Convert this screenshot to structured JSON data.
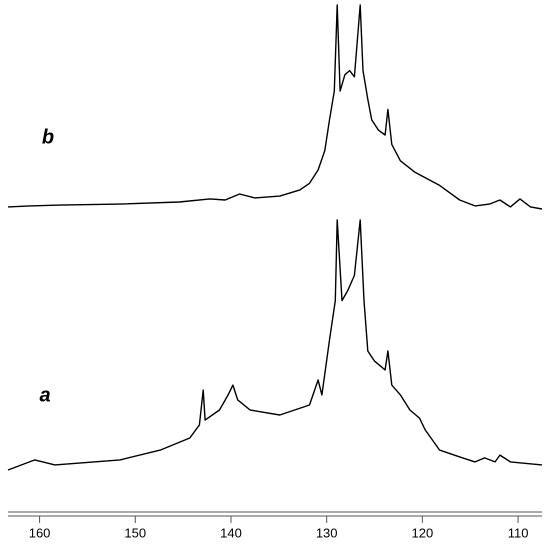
{
  "chart_data": [
    {
      "type": "line",
      "xlim": [
        163.3,
        107.5
      ],
      "ylim": [
        0,
        100
      ],
      "series": [
        {
          "name": "b",
          "color": "#000000",
          "x": [
            163.3,
            161,
            157.9,
            151.6,
            145.4,
            142.2,
            140.6,
            139.1,
            137.5,
            134.9,
            132.8,
            131.8,
            130.9,
            130.2,
            129.7,
            129.2,
            128.9,
            128.6,
            128.1,
            127.6,
            127.1,
            126.5,
            126.2,
            125.7,
            125.3,
            124.6,
            123.9,
            123.6,
            123.2,
            122.3,
            120.8,
            118.2,
            116.1,
            114.5,
            113,
            111.9,
            110.8,
            109.8,
            108.7,
            107.5
          ],
          "values": [
            1.5,
            2,
            2.4,
            2.9,
            3.9,
            5.4,
            4.9,
            7.8,
            5.9,
            6.8,
            9.8,
            13,
            19.5,
            29,
            44,
            58,
            100,
            58,
            66,
            68,
            65,
            100,
            68,
            54,
            44,
            39,
            36.6,
            49,
            32,
            24,
            18.5,
            12,
            4.9,
            2,
            2.9,
            4.9,
            1.5,
            5.4,
            1.5,
            0.5
          ]
        }
      ]
    },
    {
      "type": "line",
      "xlim": [
        163.3,
        107.5
      ],
      "ylim": [
        0,
        100
      ],
      "xticks": [
        160,
        150,
        140,
        130,
        120,
        110
      ],
      "series": [
        {
          "name": "a",
          "color": "#000000",
          "x": [
            163.3,
            160.5,
            158.4,
            151.6,
            147.4,
            144.3,
            143.3,
            142.9,
            142.7,
            141.2,
            140.3,
            139.8,
            139.3,
            138,
            134.9,
            131.8,
            130.9,
            130.5,
            129.7,
            129.1,
            128.9,
            128.4,
            127.8,
            127.1,
            126.5,
            126.1,
            125.7,
            125,
            123.9,
            123.6,
            123.2,
            122.3,
            121.3,
            120.3,
            119.7,
            118.2,
            116.1,
            114.5,
            113.5,
            112.4,
            111.9,
            110.8,
            107.5
          ],
          "values": [
            0.8,
            4.8,
            2.8,
            4.8,
            8.7,
            13.5,
            18.7,
            32.5,
            20.6,
            24.6,
            30.6,
            34.5,
            28.6,
            24.6,
            22.6,
            26.6,
            36.5,
            30.6,
            52.4,
            68,
            100,
            68,
            72,
            78,
            100,
            68,
            48,
            44,
            40.5,
            48,
            34.5,
            30.6,
            24.6,
            21.4,
            16.7,
            8.7,
            6,
            4,
            5.6,
            4,
            6.7,
            4,
            2.8
          ]
        }
      ]
    }
  ]
}
